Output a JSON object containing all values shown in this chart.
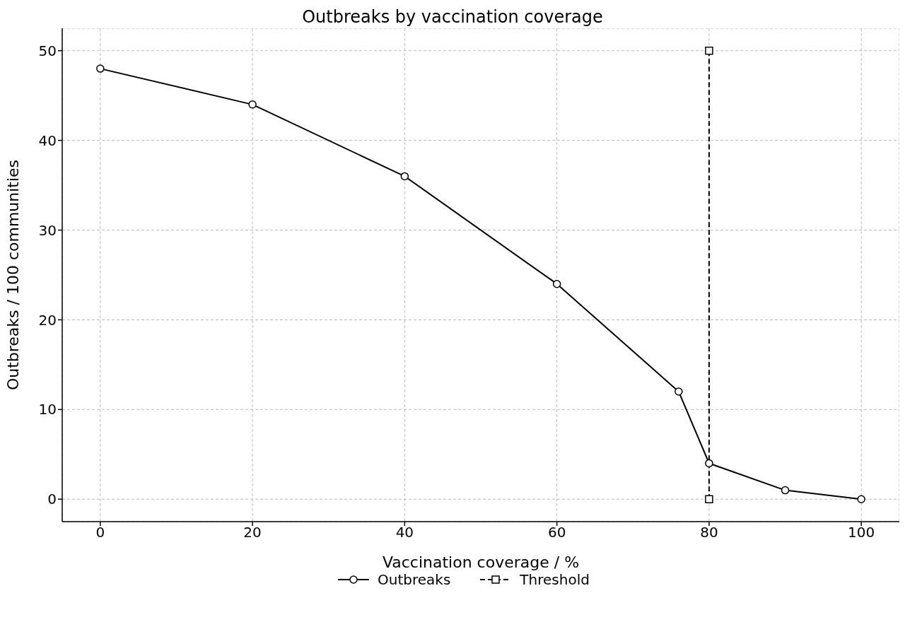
{
  "chart_data": {
    "type": "line",
    "title": "Outbreaks by vaccination coverage",
    "xlabel": "Vaccination coverage / %",
    "ylabel": "Outbreaks / 100 communities",
    "series": [
      {
        "name": "Outbreaks",
        "color": "#000000",
        "x": [
          0,
          20,
          40,
          60,
          76,
          80,
          90,
          100
        ],
        "values": [
          48,
          44,
          36,
          24,
          12,
          4,
          1,
          0
        ],
        "marker": "circle",
        "line_style": "solid"
      },
      {
        "name": "Threshold",
        "color": "#000000",
        "x": [
          80,
          80
        ],
        "values": [
          0,
          50
        ],
        "marker": "square",
        "line_style": "dashed"
      }
    ],
    "xlim": [
      -5,
      105
    ],
    "xticks": [
      0,
      20,
      40,
      60,
      80,
      100
    ],
    "ylim": [
      -2.5,
      52.5
    ],
    "yticks": [
      0,
      10,
      20,
      30,
      40,
      50
    ],
    "grid": true,
    "legend": "bottom"
  }
}
